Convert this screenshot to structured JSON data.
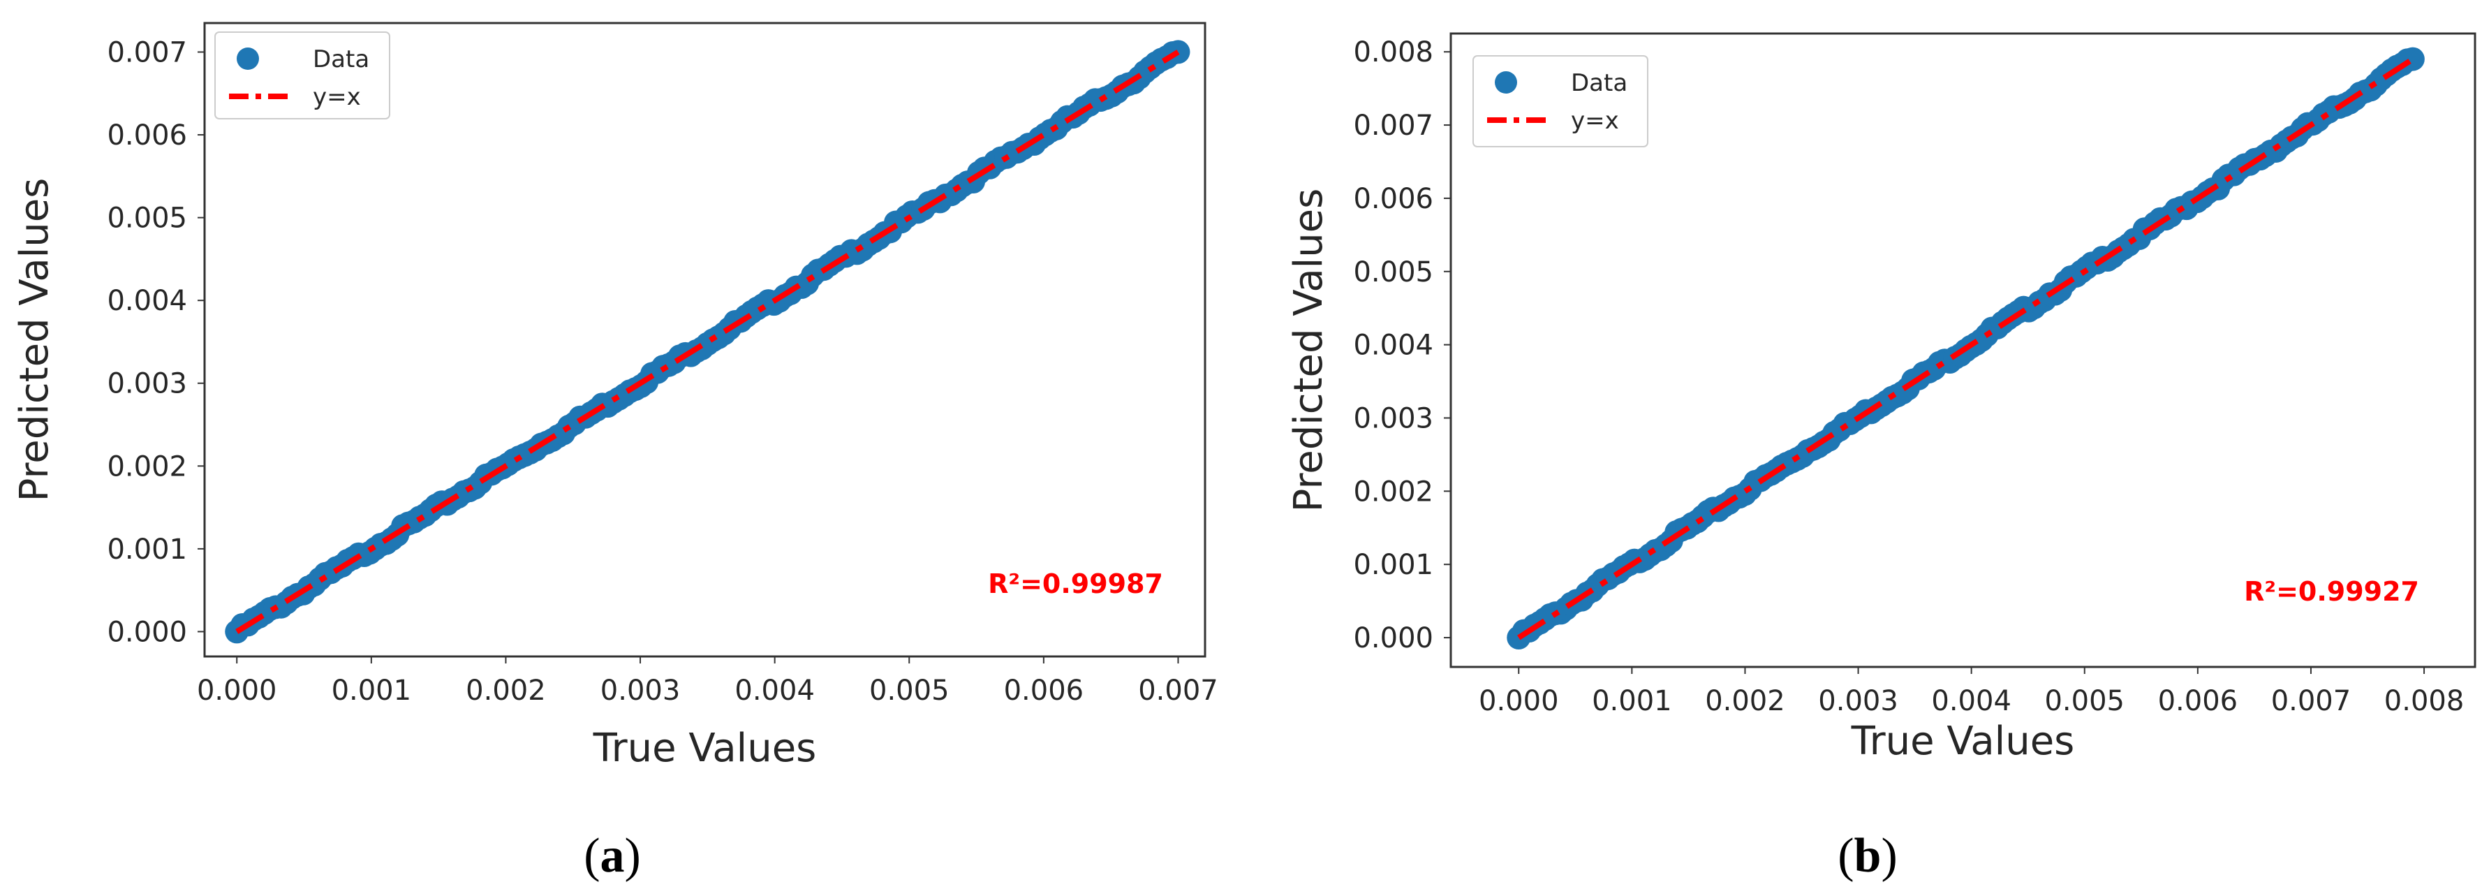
{
  "figure": {
    "panels": [
      {
        "id": "a",
        "label_open": "(",
        "label_letter": "a",
        "label_close": ")"
      },
      {
        "id": "b",
        "label_open": "(",
        "label_letter": "b",
        "label_close": ")"
      }
    ]
  },
  "colors": {
    "data_points": "#1f77b4",
    "identity_line": "#ff0000",
    "r2_text": "#ff0000",
    "axes": "#333333",
    "text": "#262626"
  },
  "chart_data": [
    {
      "type": "scatter",
      "panel": "a",
      "xlabel": "True Values",
      "ylabel": "Predicted Values",
      "xlim": [
        -0.00024,
        0.0072
      ],
      "ylim": [
        -0.0003,
        0.00735
      ],
      "x_ticks": [
        0.0,
        0.001,
        0.002,
        0.003,
        0.004,
        0.005,
        0.006,
        0.007
      ],
      "x_tick_labels": [
        "0.000",
        "0.001",
        "0.002",
        "0.003",
        "0.004",
        "0.005",
        "0.006",
        "0.007"
      ],
      "y_ticks": [
        0.0,
        0.001,
        0.002,
        0.003,
        0.004,
        0.005,
        0.006,
        0.007
      ],
      "y_tick_labels": [
        "0.000",
        "0.001",
        "0.002",
        "0.003",
        "0.004",
        "0.005",
        "0.006",
        "0.007"
      ],
      "legend": {
        "position": "top-left",
        "entries": [
          "Data",
          "y=x"
        ]
      },
      "series": [
        {
          "name": "Data",
          "kind": "scatter",
          "range": [
            0.0,
            0.007
          ],
          "note": "dense points lying on y=x"
        },
        {
          "name": "y=x",
          "kind": "line",
          "style": "dashed",
          "x": [
            0.0,
            0.007
          ],
          "y": [
            0.0,
            0.007
          ]
        }
      ],
      "annotation": "R²=0.99987"
    },
    {
      "type": "scatter",
      "panel": "b",
      "xlabel": "True Values",
      "ylabel": "Predicted Values",
      "xlim": [
        -0.0006,
        0.00845
      ],
      "ylim": [
        -0.0004,
        0.00825
      ],
      "x_ticks": [
        0.0,
        0.001,
        0.002,
        0.003,
        0.004,
        0.005,
        0.006,
        0.007,
        0.008
      ],
      "x_tick_labels": [
        "0.000",
        "0.001",
        "0.002",
        "0.003",
        "0.004",
        "0.005",
        "0.006",
        "0.007",
        "0.008"
      ],
      "y_ticks": [
        0.0,
        0.001,
        0.002,
        0.003,
        0.004,
        0.005,
        0.006,
        0.007,
        0.008
      ],
      "y_tick_labels": [
        "0.000",
        "0.001",
        "0.002",
        "0.003",
        "0.004",
        "0.005",
        "0.006",
        "0.007",
        "0.008"
      ],
      "legend": {
        "position": "top-left",
        "entries": [
          "Data",
          "y=x"
        ]
      },
      "series": [
        {
          "name": "Data",
          "kind": "scatter",
          "range": [
            0.0,
            0.0079
          ],
          "note": "dense points lying on y=x"
        },
        {
          "name": "y=x",
          "kind": "line",
          "style": "dashed",
          "x": [
            0.0,
            0.0079
          ],
          "y": [
            0.0,
            0.0079
          ]
        }
      ],
      "annotation": "R²=0.99927"
    }
  ]
}
